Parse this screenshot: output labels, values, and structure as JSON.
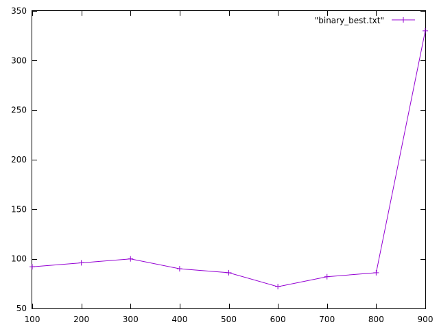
{
  "chart_data": {
    "type": "line",
    "title": "",
    "xlabel": "",
    "ylabel": "",
    "grid": false,
    "legend_position": "top-right",
    "x": [
      100,
      200,
      300,
      400,
      500,
      600,
      700,
      800,
      900
    ],
    "xlim": [
      100,
      900
    ],
    "ylim": [
      50,
      350
    ],
    "x_ticks": [
      "100",
      "200",
      "300",
      "400",
      "500",
      "600",
      "700",
      "800",
      "900"
    ],
    "y_ticks": [
      "50",
      "100",
      "150",
      "200",
      "250",
      "300",
      "350"
    ],
    "series": [
      {
        "name": "\"binary_best.txt\"",
        "color": "#9400d3",
        "marker": "plus",
        "values": [
          92,
          96,
          100,
          90,
          86,
          72,
          82,
          86,
          330
        ]
      }
    ]
  }
}
